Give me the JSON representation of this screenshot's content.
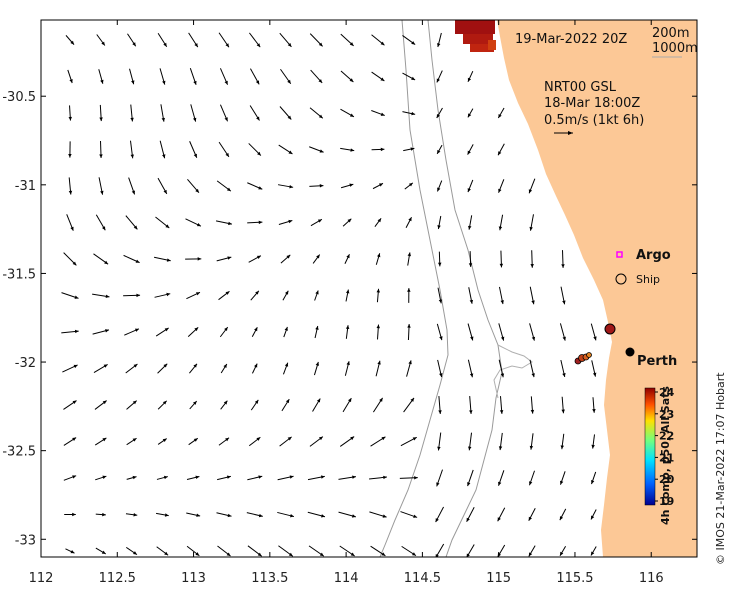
{
  "map": {
    "lon_range": [
      112,
      116.3
    ],
    "lat_range": [
      -33.1,
      -30.07
    ],
    "x_ticks": [
      112,
      112.5,
      113,
      113.5,
      114,
      114.5,
      115,
      115.5,
      116
    ],
    "x_tick_labels": [
      "112",
      "112.5",
      "113",
      "113.5",
      "114",
      "114.5",
      "115",
      "115.5",
      "116"
    ],
    "y_ticks": [
      -30.5,
      -31,
      -31.5,
      -32,
      -32.5,
      -33
    ],
    "y_tick_labels": [
      "-30.5",
      "-31",
      "-31.5",
      "-32",
      "-32.5",
      "-33"
    ],
    "land_color": "#fcc896"
  },
  "annotations": {
    "date": "19-Mar-2022 20Z",
    "contour_200": "200m",
    "contour_1000": "1000m",
    "model_line1": "NRT00 GSL",
    "model_line2": "18-Mar 18:00Z",
    "model_line3": "0.5m/s (1kt 6h)"
  },
  "legend": {
    "argo_label": "Argo",
    "argo_color": "#ff00ff",
    "ship_label": "Ship"
  },
  "places": {
    "perth_label": "Perth",
    "perth_lon": 115.86,
    "perth_lat": -31.95
  },
  "colorbar": {
    "label": "4h comp, p50, All Sats",
    "ticks": [
      "24",
      "23",
      "22",
      "21",
      "20",
      "19"
    ],
    "min": 19,
    "max": 24
  },
  "credit": "© IMOS 21-Mar-2022 17:07 Hobart"
}
